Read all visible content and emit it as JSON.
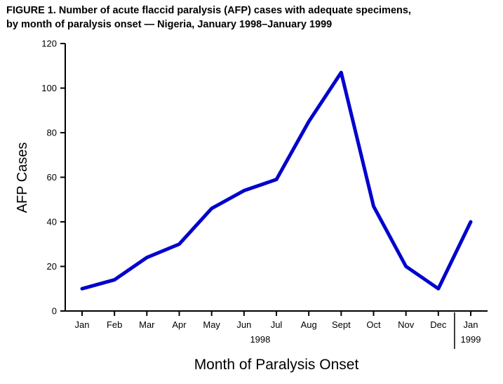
{
  "chart_data": {
    "type": "line",
    "title_line1": "FIGURE 1. Number of acute flaccid paralysis (AFP) cases with adequate specimens,",
    "title_line2": "by month of paralysis onset — Nigeria, January 1998–January 1999",
    "ylabel": "AFP Cases",
    "xlabel": "Month of Paralysis Onset",
    "categories": [
      "Jan",
      "Feb",
      "Mar",
      "Apr",
      "May",
      "Jun",
      "Jul",
      "Aug",
      "Sept",
      "Oct",
      "Nov",
      "Dec",
      "Jan"
    ],
    "values": [
      10,
      14,
      24,
      30,
      46,
      54,
      59,
      85,
      107,
      47,
      20,
      10,
      40
    ],
    "year_labels": [
      {
        "text": "1998",
        "span": [
          0,
          11
        ]
      },
      {
        "text": "1999",
        "span": [
          12,
          12
        ]
      }
    ],
    "ylim": [
      0,
      120
    ],
    "yticks": [
      0,
      20,
      40,
      60,
      80,
      100,
      120
    ],
    "line_color": "#0000CC",
    "axis_color": "#000000",
    "grid": false,
    "legend": "none"
  }
}
